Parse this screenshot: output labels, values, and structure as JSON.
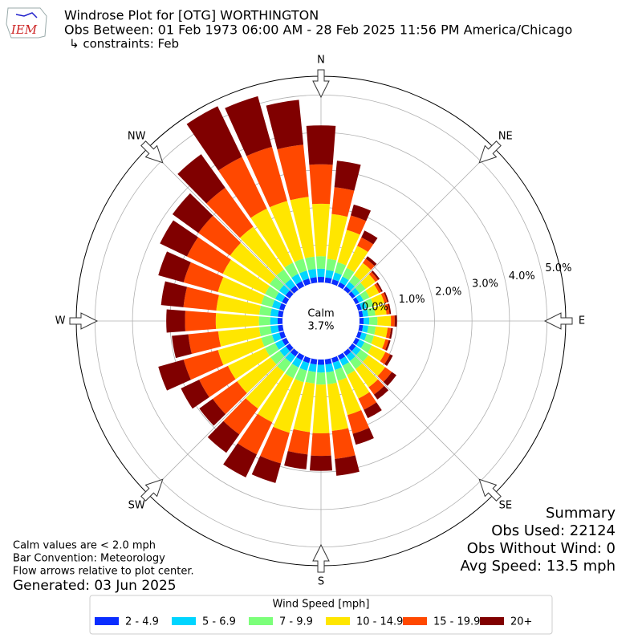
{
  "chart_data": {
    "type": "windrose",
    "logo": "IEM",
    "title": "Windrose Plot for [OTG] WORTHINGTON",
    "subtitle": "Obs Between: 01 Feb 1973 06:00 AM - 28 Feb 2025 11:56 PM America/Chicago",
    "constraints": "↳ constraints: Feb",
    "x": [
      0,
      10,
      20,
      30,
      40,
      50,
      60,
      70,
      80,
      90,
      100,
      110,
      120,
      130,
      140,
      150,
      160,
      170,
      180,
      190,
      200,
      210,
      220,
      230,
      240,
      250,
      260,
      270,
      280,
      290,
      300,
      310,
      320,
      330,
      340,
      350
    ],
    "xticks": [
      {
        "value": 0,
        "label": "N"
      },
      {
        "value": 45,
        "label": "NE"
      },
      {
        "value": 90,
        "label": "E"
      },
      {
        "value": 135,
        "label": "SE"
      },
      {
        "value": 180,
        "label": "S"
      },
      {
        "value": 225,
        "label": "SW"
      },
      {
        "value": 270,
        "label": "W"
      },
      {
        "value": 315,
        "label": "NW"
      }
    ],
    "ylim": [
      0,
      5.5
    ],
    "yticks": [
      {
        "value": 0,
        "label": "0.0%"
      },
      {
        "value": 1,
        "label": "1.0%"
      },
      {
        "value": 2,
        "label": "2.0%"
      },
      {
        "value": 3,
        "label": "3.0%"
      },
      {
        "value": 4,
        "label": "4.0%"
      },
      {
        "value": 5,
        "label": "5.0%"
      }
    ],
    "grid": true,
    "calm": {
      "label": "Calm",
      "value": 3.7,
      "value_label": "3.7%"
    },
    "legend_title": "Wind Speed [mph]",
    "series": [
      {
        "name": "2 - 4.9",
        "color": "#0a2dff",
        "values": [
          0.15,
          0.14,
          0.13,
          0.12,
          0.11,
          0.1,
          0.1,
          0.1,
          0.1,
          0.11,
          0.1,
          0.1,
          0.11,
          0.12,
          0.12,
          0.12,
          0.13,
          0.14,
          0.14,
          0.14,
          0.14,
          0.14,
          0.14,
          0.13,
          0.13,
          0.13,
          0.13,
          0.13,
          0.13,
          0.13,
          0.13,
          0.14,
          0.14,
          0.15,
          0.15,
          0.15
        ]
      },
      {
        "name": "5 - 6.9",
        "color": "#00d5ff",
        "values": [
          0.22,
          0.2,
          0.19,
          0.17,
          0.15,
          0.14,
          0.13,
          0.14,
          0.14,
          0.15,
          0.14,
          0.14,
          0.15,
          0.16,
          0.17,
          0.18,
          0.2,
          0.21,
          0.21,
          0.2,
          0.21,
          0.21,
          0.2,
          0.2,
          0.2,
          0.2,
          0.2,
          0.2,
          0.2,
          0.2,
          0.2,
          0.21,
          0.21,
          0.22,
          0.22,
          0.22
        ]
      },
      {
        "name": "7 - 9.9",
        "color": "#7cff7a",
        "values": [
          0.33,
          0.3,
          0.28,
          0.26,
          0.22,
          0.2,
          0.18,
          0.19,
          0.19,
          0.22,
          0.2,
          0.2,
          0.22,
          0.25,
          0.26,
          0.27,
          0.3,
          0.32,
          0.32,
          0.31,
          0.32,
          0.32,
          0.31,
          0.3,
          0.3,
          0.3,
          0.3,
          0.3,
          0.3,
          0.3,
          0.3,
          0.31,
          0.32,
          0.33,
          0.33,
          0.33
        ]
      },
      {
        "name": "10 - 14.9",
        "color": "#ffe600",
        "values": [
          1.4,
          1.2,
          0.9,
          0.65,
          0.4,
          0.32,
          0.28,
          0.3,
          0.3,
          0.36,
          0.32,
          0.32,
          0.4,
          0.55,
          0.6,
          0.7,
          0.95,
          1.25,
          1.3,
          1.3,
          1.4,
          1.3,
          1.2,
          1.1,
          1.1,
          1.2,
          1.1,
          1.15,
          1.15,
          1.2,
          1.25,
          1.3,
          1.4,
          1.6,
          1.6,
          1.6
        ]
      },
      {
        "name": "15 - 19.9",
        "color": "#ff4800",
        "values": [
          1.05,
          0.72,
          0.4,
          0.25,
          0.14,
          0.09,
          0.07,
          0.08,
          0.08,
          0.1,
          0.09,
          0.09,
          0.14,
          0.22,
          0.24,
          0.33,
          0.52,
          0.75,
          0.6,
          0.6,
          0.85,
          0.95,
          0.85,
          0.8,
          0.85,
          0.95,
          0.8,
          0.82,
          0.88,
          0.95,
          1.06,
          1.04,
          1.28,
          1.53,
          1.5,
          1.4
        ]
      },
      {
        "name": "20+",
        "color": "#800000",
        "values": [
          1.04,
          0.71,
          0.3,
          0.2,
          0.08,
          0.05,
          0.04,
          0.04,
          0.04,
          0.06,
          0.05,
          0.05,
          0.08,
          0.15,
          0.16,
          0.25,
          0.3,
          0.45,
          0.4,
          0.4,
          0.54,
          0.68,
          0.6,
          0.44,
          0.54,
          0.7,
          0.44,
          0.5,
          0.6,
          0.7,
          0.8,
          0.85,
          1.1,
          1.5,
          1.4,
          1.2
        ]
      }
    ],
    "summary": {
      "title": "Summary",
      "lines": [
        "Obs Used: 22124",
        "Obs Without Wind: 0",
        "Avg Speed: 13.5 mph"
      ]
    },
    "notes": [
      "Calm values are < 2.0 mph",
      "Bar Convention: Meteorology",
      "Flow arrows relative to plot center."
    ],
    "generated": "Generated: 03 Jun 2025"
  }
}
